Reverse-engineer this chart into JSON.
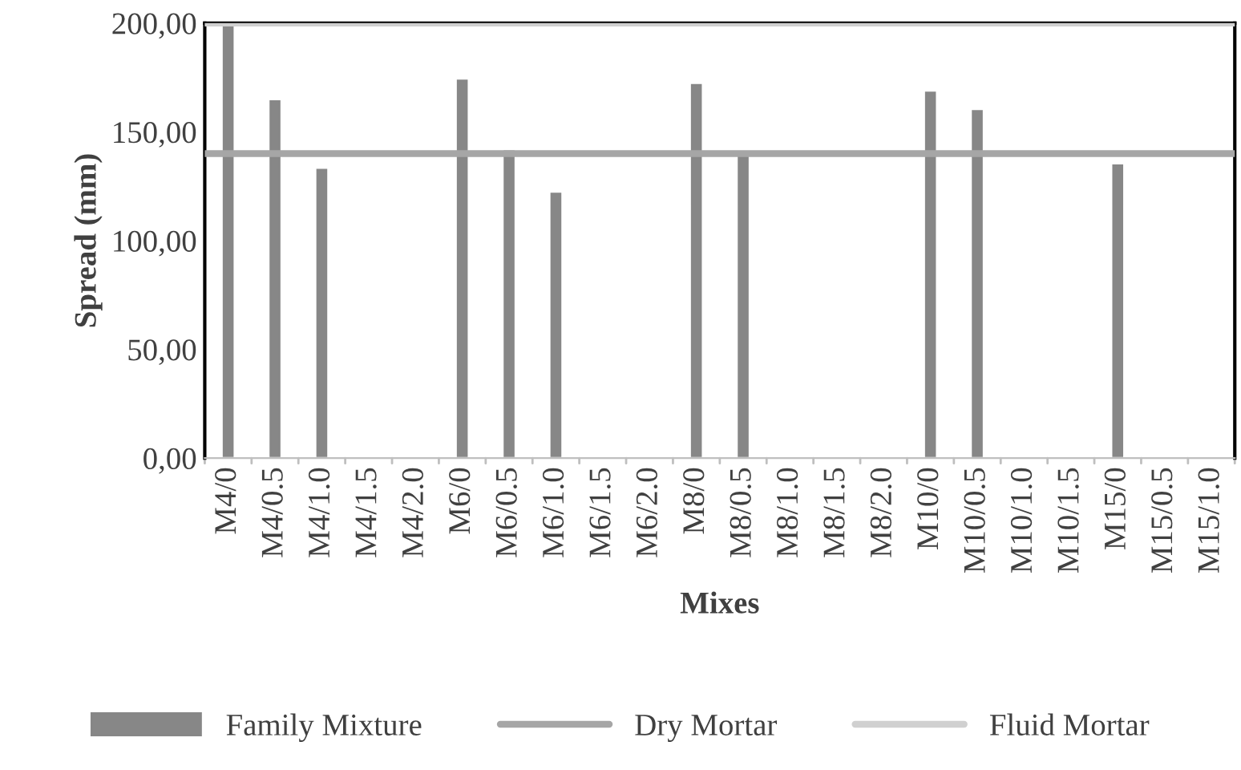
{
  "chart_data": {
    "type": "bar",
    "xlabel": "Mixes",
    "ylabel": "Spread (mm)",
    "categories": [
      "M4/0",
      "M4/0.5",
      "M4/1.0",
      "M4/1.5",
      "M4/2.0",
      "M6/0",
      "M6/0.5",
      "M6/1.0",
      "M6/1.5",
      "M6/2.0",
      "M8/0",
      "M8/0.5",
      "M8/1.0",
      "M8/1.5",
      "M8/2.0",
      "M10/0",
      "M10/0.5",
      "M10/1.0",
      "M10/1.5",
      "M15/0",
      "M15/0.5",
      "M15/1.0"
    ],
    "series": [
      {
        "name": "Family Mixture",
        "color": "#878787",
        "values": [
          200,
          165,
          133.5,
          null,
          null,
          174.5,
          142,
          122.5,
          null,
          null,
          172.5,
          141,
          null,
          null,
          null,
          169,
          160.5,
          null,
          null,
          135.5,
          null,
          null
        ]
      }
    ],
    "ref_lines": [
      {
        "axis": "y",
        "value": 140,
        "label": "Dry Mortar",
        "color": "#a6a6a6"
      },
      {
        "axis": "y",
        "value": 200,
        "label": "Fluid Mortar",
        "color": "#d0d0d0"
      }
    ],
    "ylim": [
      0,
      200
    ],
    "yticks": [
      {
        "value": 0,
        "label": "0,00"
      },
      {
        "value": 50,
        "label": "50,00"
      },
      {
        "value": 100,
        "label": "100,00"
      },
      {
        "value": 150,
        "label": "150,00"
      },
      {
        "value": 200,
        "label": "200,00"
      }
    ],
    "grid": false,
    "legend": "bottom"
  }
}
